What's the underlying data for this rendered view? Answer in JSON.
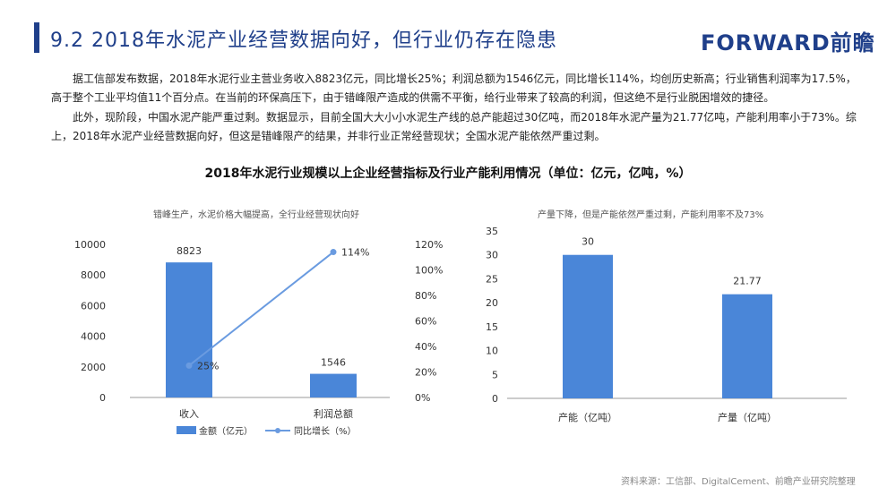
{
  "header": {
    "title": "9.2 2018年水泥产业经营数据向好，但行业仍存在隐患",
    "brand": "FORWARD前瞻"
  },
  "body": {
    "paragraph1": "据工信部发布数据，2018年水泥行业主营业务收入8823亿元，同比增长25%；利润总额为1546亿元，同比增长114%，均创历史新高；行业销售利润率为17.5%，高于整个工业平均值11个百分点。在当前的环保高压下，由于错峰限产造成的供需不平衡，给行业带来了较高的利润，但这绝不是行业脱困增效的捷径。",
    "paragraph2": "此外，现阶段，中国水泥产能严重过剩。数据显示，目前全国大大小小水泥生产线的总产能超过30亿吨，而2018年水泥产量为21.77亿吨，产能利用率小于73%。综上，2018年水泥产业经营数据向好，但这是错峰限产的结果，并非行业正常经营现状；全国水泥产能依然严重过剩。"
  },
  "figure": {
    "title": "2018年水泥行业规模以上企业经营指标及行业产能利用情况（单位：亿元，亿吨，%）",
    "left_subtitle": "错峰生产，水泥价格大幅提高，全行业经营现状向好",
    "right_subtitle": "产量下降，但是产能依然严重过剩，产能利用率不及73%",
    "source": "资料来源：工信部、DigitalCement、前瞻产业研究院整理"
  },
  "colors": {
    "bar": "#4a86d8",
    "line": "#6a9be0",
    "title": "#1f3f8a"
  },
  "chart_data": [
    {
      "type": "bar",
      "categories": [
        "收入",
        "利润总额"
      ],
      "series": [
        {
          "name": "金额（亿元）",
          "type": "bar",
          "axis": "left",
          "values": [
            8823,
            1546
          ],
          "labels": [
            "8823",
            "1546"
          ]
        },
        {
          "name": "同比增长（%）",
          "type": "line",
          "axis": "right",
          "values": [
            25,
            114
          ],
          "labels": [
            "25%",
            "114%"
          ]
        }
      ],
      "yleft_ticks": [
        "0",
        "2000",
        "4000",
        "6000",
        "8000",
        "10000"
      ],
      "yleft_lim": [
        0,
        10000
      ],
      "yright_ticks": [
        "0%",
        "20%",
        "40%",
        "60%",
        "80%",
        "100%",
        "120%"
      ],
      "yright_lim": [
        0,
        120
      ],
      "legend_position": "bottom-left"
    },
    {
      "type": "bar",
      "categories": [
        "产能（亿吨）",
        "产量（亿吨）"
      ],
      "values": [
        30,
        21.77
      ],
      "labels": [
        "30",
        "21.77"
      ],
      "y_ticks": [
        "0",
        "5",
        "10",
        "15",
        "20",
        "25",
        "30",
        "35"
      ],
      "ylim": [
        0,
        35
      ]
    }
  ]
}
